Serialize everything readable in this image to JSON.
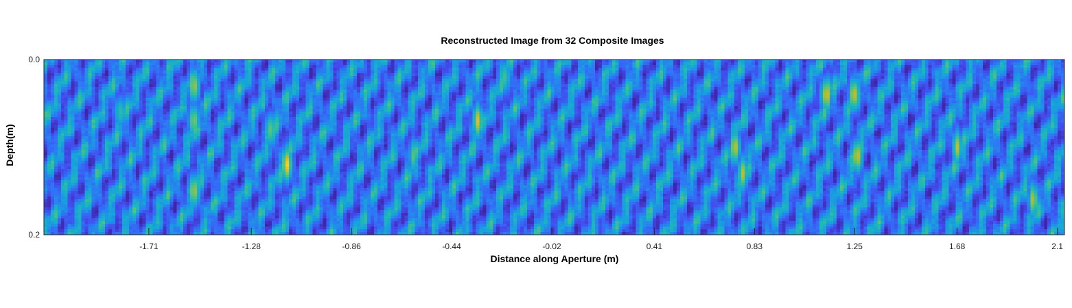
{
  "chart_data": {
    "type": "heatmap",
    "title": "Reconstructed Image from 32 Composite Images",
    "xlabel": "Distance along Aperture (m)",
    "ylabel": "Depth(m)",
    "x_ticks": [
      "-1.71",
      "-1.28",
      "-0.86",
      "-0.44",
      "-0.02",
      "0.41",
      "0.83",
      "1.25",
      "1.68",
      "2.1"
    ],
    "x_tick_values": [
      -1.71,
      -1.28,
      -0.86,
      -0.44,
      -0.02,
      0.41,
      0.83,
      1.25,
      1.68,
      2.1
    ],
    "y_ticks": [
      "0.0",
      "0.2"
    ],
    "y_tick_values": [
      0.0,
      0.2
    ],
    "xlim": [
      -2.15,
      2.13
    ],
    "ylim": [
      0.0,
      0.2
    ],
    "y_reversed": true,
    "colormap": "parula",
    "colors": {
      "low": "#3e26a8",
      "mid_low": "#2f74f7",
      "mid": "#1fb8b7",
      "mid_high": "#a5be2d",
      "high": "#f9d427"
    },
    "hotspots": [
      {
        "x": -1.52,
        "y": 0.03,
        "level": 0.85
      },
      {
        "x": -1.52,
        "y": 0.07,
        "level": 0.8
      },
      {
        "x": -1.52,
        "y": 0.15,
        "level": 0.85
      },
      {
        "x": -1.13,
        "y": 0.12,
        "level": 0.95
      },
      {
        "x": -1.2,
        "y": 0.08,
        "level": 0.75
      },
      {
        "x": -0.33,
        "y": 0.07,
        "level": 0.85
      },
      {
        "x": -0.22,
        "y": 0.02,
        "level": 0.7
      },
      {
        "x": 0.75,
        "y": 0.1,
        "level": 0.85
      },
      {
        "x": 0.78,
        "y": 0.13,
        "level": 0.8
      },
      {
        "x": 1.13,
        "y": 0.04,
        "level": 0.9
      },
      {
        "x": 1.25,
        "y": 0.04,
        "level": 0.9
      },
      {
        "x": 1.26,
        "y": 0.11,
        "level": 0.9
      },
      {
        "x": 1.68,
        "y": 0.1,
        "level": 0.8
      },
      {
        "x": 2.0,
        "y": 0.16,
        "level": 0.8
      },
      {
        "x": -1.83,
        "y": 0.06,
        "level": 0.65
      },
      {
        "x": -0.6,
        "y": 0.11,
        "level": 0.65
      }
    ]
  }
}
